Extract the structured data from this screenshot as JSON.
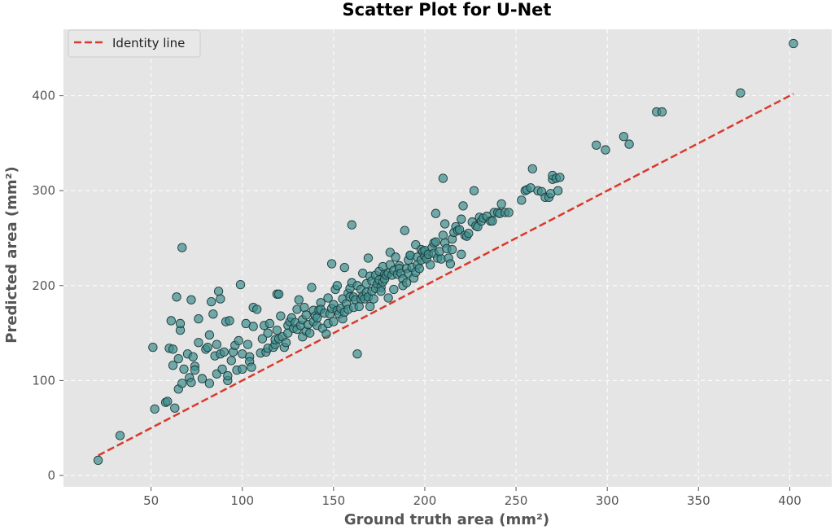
{
  "chart_data": {
    "type": "scatter",
    "title": "Scatter Plot for U-Net",
    "xlabel": "Ground truth area (mm²)",
    "ylabel": "Predicted area (mm²)",
    "xlim": [
      2,
      423
    ],
    "ylim": [
      -12,
      470
    ],
    "xticks": [
      50,
      100,
      150,
      200,
      250,
      300,
      350,
      400
    ],
    "yticks": [
      0,
      100,
      200,
      300,
      400
    ],
    "grid": true,
    "legend": {
      "placement": "top-left",
      "entries": [
        "Identity line"
      ]
    },
    "identity_line": {
      "name": "Identity line",
      "x": [
        21,
        402
      ],
      "y": [
        21,
        402
      ],
      "color": "#d9392b",
      "style": "dashed"
    },
    "marker_color": "#3f8f8f",
    "marker_edge": "#1f3a3a",
    "plot_background": "#e5e5e5",
    "points": [
      [
        21,
        16
      ],
      [
        33,
        42
      ],
      [
        51,
        135
      ],
      [
        52,
        70
      ],
      [
        58,
        77
      ],
      [
        59,
        78
      ],
      [
        60,
        134
      ],
      [
        61,
        163
      ],
      [
        62,
        116
      ],
      [
        62,
        133
      ],
      [
        63,
        71
      ],
      [
        64,
        188
      ],
      [
        65,
        123
      ],
      [
        65,
        91
      ],
      [
        66,
        153
      ],
      [
        66,
        160
      ],
      [
        67,
        240
      ],
      [
        67,
        97
      ],
      [
        68,
        112
      ],
      [
        70,
        128
      ],
      [
        71,
        103
      ],
      [
        72,
        98
      ],
      [
        72,
        185
      ],
      [
        73,
        125
      ],
      [
        74,
        115
      ],
      [
        74,
        111
      ],
      [
        76,
        140
      ],
      [
        76,
        165
      ],
      [
        78,
        102
      ],
      [
        80,
        133
      ],
      [
        81,
        135
      ],
      [
        82,
        97
      ],
      [
        82,
        148
      ],
      [
        83,
        183
      ],
      [
        84,
        170
      ],
      [
        85,
        126
      ],
      [
        86,
        107
      ],
      [
        86,
        138
      ],
      [
        87,
        194
      ],
      [
        88,
        128
      ],
      [
        88,
        186
      ],
      [
        89,
        112
      ],
      [
        90,
        130
      ],
      [
        91,
        162
      ],
      [
        92,
        100
      ],
      [
        92,
        105
      ],
      [
        93,
        163
      ],
      [
        94,
        121
      ],
      [
        95,
        130
      ],
      [
        96,
        137
      ],
      [
        97,
        111
      ],
      [
        98,
        142
      ],
      [
        99,
        201
      ],
      [
        100,
        128
      ],
      [
        100,
        112
      ],
      [
        102,
        160
      ],
      [
        103,
        138
      ],
      [
        104,
        125
      ],
      [
        104,
        120
      ],
      [
        105,
        114
      ],
      [
        106,
        177
      ],
      [
        106,
        157
      ],
      [
        108,
        175
      ],
      [
        110,
        129
      ],
      [
        111,
        144
      ],
      [
        112,
        158
      ],
      [
        113,
        130
      ],
      [
        114,
        150
      ],
      [
        114,
        134
      ],
      [
        115,
        160
      ],
      [
        117,
        135
      ],
      [
        118,
        138
      ],
      [
        118,
        143
      ],
      [
        119,
        153
      ],
      [
        119,
        191
      ],
      [
        120,
        191
      ],
      [
        120,
        144
      ],
      [
        121,
        168
      ],
      [
        122,
        146
      ],
      [
        123,
        135
      ],
      [
        124,
        140
      ],
      [
        125,
        158
      ],
      [
        125,
        150
      ],
      [
        126,
        162
      ],
      [
        127,
        166
      ],
      [
        128,
        155
      ],
      [
        129,
        161
      ],
      [
        130,
        154
      ],
      [
        130,
        175
      ],
      [
        131,
        185
      ],
      [
        132,
        158
      ],
      [
        133,
        146
      ],
      [
        133,
        164
      ],
      [
        134,
        177
      ],
      [
        135,
        169
      ],
      [
        135,
        152
      ],
      [
        136,
        159
      ],
      [
        137,
        150
      ],
      [
        138,
        198
      ],
      [
        139,
        174
      ],
      [
        139,
        162
      ],
      [
        140,
        168
      ],
      [
        141,
        158
      ],
      [
        141,
        166
      ],
      [
        142,
        174
      ],
      [
        143,
        182
      ],
      [
        143,
        175
      ],
      [
        144,
        155
      ],
      [
        145,
        171
      ],
      [
        146,
        149
      ],
      [
        147,
        187
      ],
      [
        147,
        160
      ],
      [
        148,
        170
      ],
      [
        149,
        223
      ],
      [
        149,
        176
      ],
      [
        150,
        162
      ],
      [
        150,
        180
      ],
      [
        151,
        196
      ],
      [
        152,
        200
      ],
      [
        152,
        174
      ],
      [
        153,
        170
      ],
      [
        154,
        176
      ],
      [
        155,
        165
      ],
      [
        155,
        186
      ],
      [
        156,
        172
      ],
      [
        156,
        219
      ],
      [
        157,
        181
      ],
      [
        158,
        192
      ],
      [
        158,
        175
      ],
      [
        159,
        197
      ],
      [
        159,
        188
      ],
      [
        160,
        203
      ],
      [
        160,
        264
      ],
      [
        161,
        177
      ],
      [
        161,
        188
      ],
      [
        162,
        185
      ],
      [
        163,
        200
      ],
      [
        163,
        128
      ],
      [
        164,
        178
      ],
      [
        165,
        186
      ],
      [
        165,
        196
      ],
      [
        166,
        213
      ],
      [
        166,
        189
      ],
      [
        167,
        186
      ],
      [
        168,
        193
      ],
      [
        168,
        202
      ],
      [
        169,
        229
      ],
      [
        169,
        188
      ],
      [
        170,
        210
      ],
      [
        170,
        178
      ],
      [
        171,
        194
      ],
      [
        171,
        205
      ],
      [
        172,
        186
      ],
      [
        173,
        197
      ],
      [
        173,
        211
      ],
      [
        174,
        202
      ],
      [
        175,
        215
      ],
      [
        175,
        206
      ],
      [
        176,
        198
      ],
      [
        176,
        194
      ],
      [
        177,
        220
      ],
      [
        177,
        204
      ],
      [
        178,
        212
      ],
      [
        178,
        207
      ],
      [
        179,
        211
      ],
      [
        180,
        213
      ],
      [
        180,
        187
      ],
      [
        181,
        222
      ],
      [
        181,
        235
      ],
      [
        182,
        211
      ],
      [
        183,
        216
      ],
      [
        183,
        196
      ],
      [
        184,
        230
      ],
      [
        185,
        212
      ],
      [
        186,
        221
      ],
      [
        186,
        218
      ],
      [
        187,
        213
      ],
      [
        188,
        207
      ],
      [
        188,
        200
      ],
      [
        189,
        258
      ],
      [
        190,
        203
      ],
      [
        190,
        218
      ],
      [
        191,
        227
      ],
      [
        191,
        213
      ],
      [
        192,
        232
      ],
      [
        192,
        232
      ],
      [
        193,
        219
      ],
      [
        194,
        208
      ],
      [
        195,
        243
      ],
      [
        195,
        214
      ],
      [
        196,
        230
      ],
      [
        196,
        222
      ],
      [
        197,
        218
      ],
      [
        198,
        238
      ],
      [
        198,
        227
      ],
      [
        199,
        236
      ],
      [
        200,
        231
      ],
      [
        200,
        237
      ],
      [
        201,
        228
      ],
      [
        202,
        233
      ],
      [
        203,
        222
      ],
      [
        204,
        240
      ],
      [
        205,
        234
      ],
      [
        205,
        245
      ],
      [
        206,
        276
      ],
      [
        206,
        246
      ],
      [
        207,
        229
      ],
      [
        208,
        236
      ],
      [
        209,
        228
      ],
      [
        210,
        313
      ],
      [
        210,
        253
      ],
      [
        211,
        245
      ],
      [
        211,
        265
      ],
      [
        212,
        239
      ],
      [
        213,
        229
      ],
      [
        214,
        223
      ],
      [
        215,
        249
      ],
      [
        215,
        238
      ],
      [
        216,
        256
      ],
      [
        217,
        262
      ],
      [
        218,
        258
      ],
      [
        219,
        259
      ],
      [
        220,
        270
      ],
      [
        220,
        233
      ],
      [
        221,
        284
      ],
      [
        222,
        253
      ],
      [
        223,
        252
      ],
      [
        224,
        255
      ],
      [
        226,
        267
      ],
      [
        227,
        300
      ],
      [
        228,
        263
      ],
      [
        229,
        262
      ],
      [
        230,
        272
      ],
      [
        231,
        268
      ],
      [
        232,
        271
      ],
      [
        234,
        273
      ],
      [
        236,
        268
      ],
      [
        237,
        268
      ],
      [
        238,
        277
      ],
      [
        240,
        277
      ],
      [
        241,
        276
      ],
      [
        242,
        286
      ],
      [
        244,
        277
      ],
      [
        246,
        277
      ],
      [
        253,
        290
      ],
      [
        255,
        300
      ],
      [
        256,
        301
      ],
      [
        258,
        303
      ],
      [
        259,
        323
      ],
      [
        262,
        300
      ],
      [
        264,
        299
      ],
      [
        266,
        293
      ],
      [
        268,
        293
      ],
      [
        269,
        297
      ],
      [
        270,
        312
      ],
      [
        270,
        316
      ],
      [
        272,
        313
      ],
      [
        273,
        300
      ],
      [
        274,
        314
      ],
      [
        294,
        348
      ],
      [
        299,
        343
      ],
      [
        309,
        357
      ],
      [
        312,
        349
      ],
      [
        327,
        383
      ],
      [
        330,
        383
      ],
      [
        373,
        403
      ],
      [
        402,
        455
      ]
    ]
  }
}
